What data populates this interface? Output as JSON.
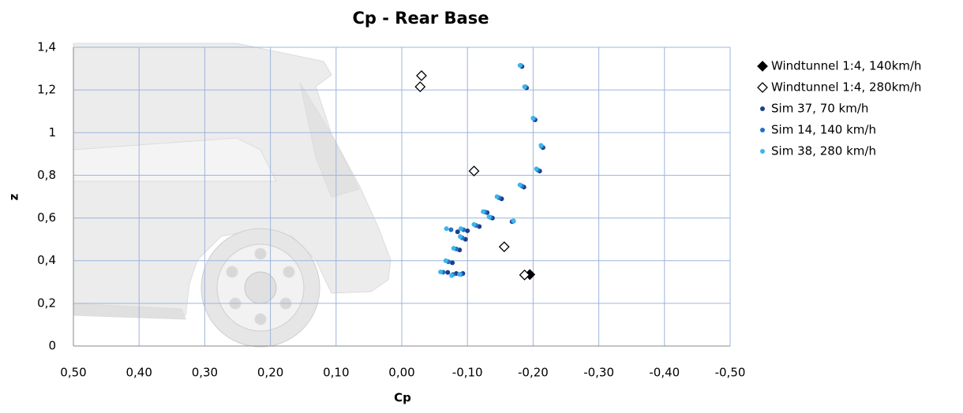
{
  "chart_data": {
    "type": "scatter",
    "title": "Cp - Rear Base",
    "x_label": "Cp",
    "y_label": "z",
    "xlim": [
      0.5,
      -0.5
    ],
    "xticks": [
      {
        "value": 0.5,
        "label": "0,50"
      },
      {
        "value": 0.4,
        "label": "0,40"
      },
      {
        "value": 0.3,
        "label": "0,30"
      },
      {
        "value": 0.2,
        "label": "0,20"
      },
      {
        "value": 0.1,
        "label": "0,10"
      },
      {
        "value": 0,
        "label": "0,00"
      },
      {
        "value": -0.1,
        "label": "-0,10"
      },
      {
        "value": -0.2,
        "label": "-0,20"
      },
      {
        "value": -0.3,
        "label": "-0,30"
      },
      {
        "value": -0.4,
        "label": "-0,40"
      },
      {
        "value": -0.5,
        "label": "-0,50"
      }
    ],
    "ylim": [
      0,
      1.4
    ],
    "yticks": [
      0,
      {
        "value": 0.2,
        "label": "0,2"
      },
      {
        "value": 0.4,
        "label": "0,4"
      },
      {
        "value": 0.6,
        "label": "0,6"
      },
      {
        "value": 0.8,
        "label": "0,8"
      },
      1,
      {
        "value": 1.2,
        "label": "1,2"
      },
      {
        "value": 1.4,
        "label": "1,4"
      }
    ],
    "grid": true,
    "series": [
      {
        "name": "Windtunnel 1:4, 140km/h",
        "color": "#000000",
        "marker": "diamond-filled",
        "x": [
          -0.195
        ],
        "values": [
          0.335
        ]
      },
      {
        "name": "Windtunnel 1:4, 280km/h",
        "color": "#000000",
        "marker": "diamond-open",
        "x": [
          -0.03,
          -0.028,
          -0.11,
          -0.156,
          -0.187
        ],
        "values": [
          1.267,
          1.215,
          0.82,
          0.465,
          0.333
        ]
      },
      {
        "name": "Sim 37, 70 km/h",
        "color": "#1c3e8c",
        "marker": "dot",
        "x": [
          -0.183,
          -0.19,
          -0.203,
          -0.215,
          -0.21,
          -0.186,
          -0.152,
          -0.13,
          -0.138,
          -0.168,
          -0.118,
          -0.1,
          -0.085,
          -0.097,
          -0.088,
          -0.077,
          -0.07,
          -0.083,
          -0.093
        ],
        "values": [
          1.31,
          1.21,
          1.06,
          0.93,
          0.82,
          0.745,
          0.69,
          0.625,
          0.6,
          0.583,
          0.56,
          0.54,
          0.535,
          0.5,
          0.45,
          0.39,
          0.345,
          0.34,
          0.34
        ]
      },
      {
        "name": "Sim 14, 140 km/h",
        "color": "#1f72c4",
        "marker": "dot",
        "x": [
          -0.181,
          -0.188,
          -0.201,
          -0.213,
          -0.207,
          -0.183,
          -0.148,
          -0.127,
          -0.135,
          -0.17,
          -0.113,
          -0.094,
          -0.075,
          -0.092,
          -0.083,
          -0.071,
          -0.063,
          -0.078,
          -0.09
        ],
        "values": [
          1.315,
          1.215,
          1.065,
          0.935,
          0.825,
          0.75,
          0.695,
          0.628,
          0.603,
          0.585,
          0.565,
          0.545,
          0.545,
          0.507,
          0.455,
          0.395,
          0.346,
          0.335,
          0.336
        ]
      },
      {
        "name": "Sim 38, 280 km/h",
        "color": "#3db5ea",
        "marker": "dot",
        "x": [
          -0.18,
          -0.187,
          -0.2,
          -0.212,
          -0.205,
          -0.18,
          -0.145,
          -0.124,
          -0.133,
          -0.17,
          -0.11,
          -0.09,
          -0.068,
          -0.089,
          -0.079,
          -0.067,
          -0.059,
          -0.076,
          -0.088
        ],
        "values": [
          1.315,
          1.215,
          1.068,
          0.94,
          0.83,
          0.755,
          0.7,
          0.63,
          0.605,
          0.587,
          0.57,
          0.55,
          0.55,
          0.513,
          0.458,
          0.4,
          0.347,
          0.33,
          0.336
        ]
      }
    ]
  }
}
